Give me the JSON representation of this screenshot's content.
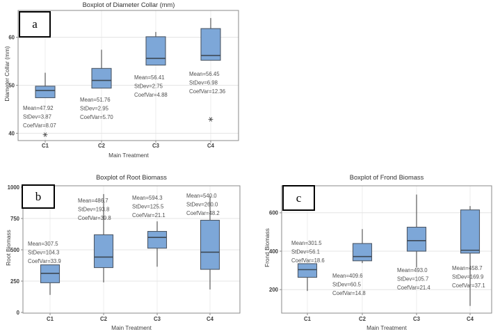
{
  "figure": {
    "background": "#ffffff"
  },
  "colors": {
    "box_fill": "#7da7d8",
    "box_border": "#4d5866",
    "median_line": "#3d4854",
    "whisker": "#5a5a5a",
    "gridline": "#e4e4e4",
    "frame": "#8a8a8a",
    "tick_text": "#3d3d3d",
    "annotation_text": "#4f4f4f",
    "outlier": "#5a5a5a"
  },
  "chart_data": [
    {
      "type": "boxplot",
      "panel_letter": "a",
      "title": "Boxplot of Diameter Collar (mm)",
      "xlabel": "Main Treatment",
      "ylabel": "Diameter Collar (mm)",
      "ylim": [
        38,
        66
      ],
      "yticks": [
        40,
        50,
        60
      ],
      "grid": "horizontal and faint vertical category lines",
      "categories": [
        "C1",
        "C2",
        "C3",
        "C4"
      ],
      "boxes": [
        {
          "category": "C1",
          "whisker_low": 47.4,
          "q1": 47.4,
          "median": 48.9,
          "q3": 49.8,
          "whisker_high": 52.6,
          "outliers": [
            39.7
          ],
          "annotation": [
            "Mean=47.92",
            "StDev=3.87",
            "CoefVar=8.07"
          ]
        },
        {
          "category": "C2",
          "whisker_low": 49.4,
          "q1": 49.4,
          "median": 51.0,
          "q3": 53.5,
          "whisker_high": 57.4,
          "outliers": [],
          "annotation": [
            "Mean=51.76",
            "StDev=2.95",
            "CoefVar=5.70"
          ]
        },
        {
          "category": "C3",
          "whisker_low": 54.2,
          "q1": 54.2,
          "median": 55.6,
          "q3": 60.1,
          "whisker_high": 61.1,
          "outliers": [],
          "annotation": [
            "Mean=56.41",
            "StDev=2.75",
            "CoefVar=4.88"
          ]
        },
        {
          "category": "C4",
          "whisker_low": 55.2,
          "q1": 55.2,
          "median": 56.2,
          "q3": 61.8,
          "whisker_high": 64.0,
          "outliers": [
            42.9
          ],
          "annotation": [
            "Mean=56.45",
            "StDev=6.98",
            "CoefVar=12.36"
          ]
        }
      ]
    },
    {
      "type": "boxplot",
      "panel_letter": "b",
      "title": "Boxplot of Root Biomass",
      "xlabel": "Main Treatment",
      "ylabel": "Root Biomass",
      "ylim": [
        0,
        1010
      ],
      "yticks": [
        0,
        250,
        500,
        750,
        1000
      ],
      "grid": "horizontal and faint vertical category lines",
      "categories": [
        "C1",
        "C2",
        "C3",
        "C4"
      ],
      "boxes": [
        {
          "category": "C1",
          "whisker_low": 140,
          "q1": 237,
          "median": 312,
          "q3": 380,
          "whisker_high": 380,
          "outliers": [],
          "annotation": [
            "Mean=307.5",
            "StDev=104.3",
            "CoefVar=33.9"
          ]
        },
        {
          "category": "C2",
          "whisker_low": 240,
          "q1": 358,
          "median": 442,
          "q3": 620,
          "whisker_high": 945,
          "outliers": [],
          "annotation": [
            "Mean=486.7",
            "StDev=193.8",
            "CoefVar=39.8"
          ]
        },
        {
          "category": "C3",
          "whisker_low": 365,
          "q1": 513,
          "median": 599,
          "q3": 647,
          "whisker_high": 727,
          "outliers": [],
          "annotation": [
            "Mean=594.3",
            "StDev=125.5",
            "CoefVar=21.1"
          ]
        },
        {
          "category": "C4",
          "whisker_low": 183,
          "q1": 344,
          "median": 481,
          "q3": 736,
          "whisker_high": 930,
          "outliers": [],
          "annotation": [
            "Mean=540.0",
            "StDev=260.0",
            "CoefVar=48.2"
          ]
        }
      ]
    },
    {
      "type": "boxplot",
      "panel_letter": "c",
      "title": "Boxplot of Frond Biomass",
      "xlabel": "Main Treatment",
      "ylabel": "Frond Biomass",
      "ylim": [
        80,
        740
      ],
      "yticks": [
        200,
        400,
        600
      ],
      "grid": "horizontal and faint vertical category lines",
      "categories": [
        "C1",
        "C2",
        "C3",
        "C4"
      ],
      "boxes": [
        {
          "category": "C1",
          "whisker_low": 193,
          "q1": 264,
          "median": 304,
          "q3": 335,
          "whisker_high": 335,
          "outliers": [],
          "annotation": [
            "Mean=301.5",
            "StDev=56.1",
            "CoefVar=18.6"
          ]
        },
        {
          "category": "C2",
          "whisker_low": 338,
          "q1": 350,
          "median": 372,
          "q3": 440,
          "whisker_high": 515,
          "outliers": [],
          "annotation": [
            "Mean=409.6",
            "StDev=60.5",
            "CoefVar=14.8"
          ]
        },
        {
          "category": "C3",
          "whisker_low": 315,
          "q1": 400,
          "median": 455,
          "q3": 525,
          "whisker_high": 695,
          "outliers": [],
          "annotation": [
            "Mean=493.0",
            "StDev=105.7",
            "CoefVar=21.4"
          ]
        },
        {
          "category": "C4",
          "whisker_low": 115,
          "q1": 390,
          "median": 405,
          "q3": 615,
          "whisker_high": 635,
          "outliers": [],
          "annotation": [
            "Mean=458.7",
            "StDev=169.9",
            "CoefVar=37.1"
          ]
        }
      ]
    }
  ]
}
